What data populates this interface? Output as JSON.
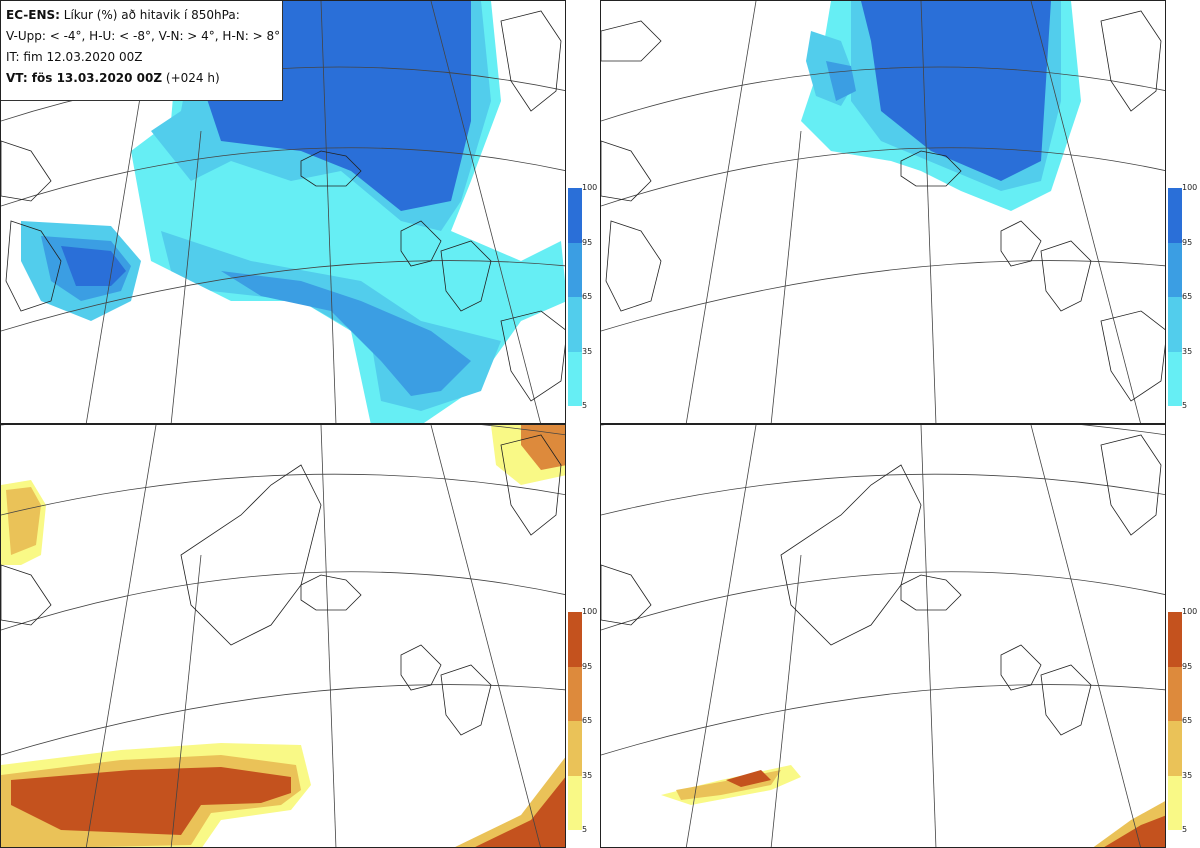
{
  "info": {
    "line1_bold": "EC-ENS:",
    "line1_rest": " Líkur (%) að hitavik í 850hPa:",
    "line2": "V-Upp: < -4°, H-U: < -8°, V-N: > 4°, H-N: > 8°",
    "line3": "IT: fim 12.03.2020 00Z",
    "line4_bold": "VT: fös 13.03.2020 00Z",
    "line4_rest": " (+024 h)"
  },
  "colorbars": {
    "ticks": [
      "5",
      "35",
      "65",
      "95",
      "100"
    ],
    "cold_colors": [
      "#66eef4",
      "#52cdec",
      "#3b9ee3",
      "#2a6fd8"
    ],
    "warm_colors": [
      "#f9f986",
      "#eac258",
      "#dd8a3c",
      "#c4521e"
    ]
  },
  "panels": [
    {
      "name": "V-Upp",
      "scale": "cold"
    },
    {
      "name": "H-U",
      "scale": "cold"
    },
    {
      "name": "V-N",
      "scale": "warm"
    },
    {
      "name": "H-N",
      "scale": "warm"
    }
  ]
}
